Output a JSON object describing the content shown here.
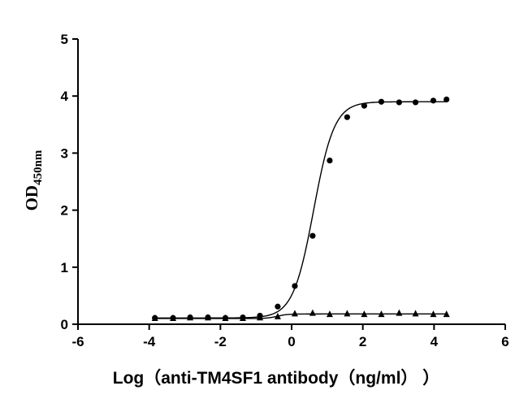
{
  "chart_data": {
    "type": "scatter",
    "title": "",
    "xlabel": "Log（anti-TM4SF1 antibody（ng/ml） ）",
    "ylabel_main": "OD",
    "ylabel_sub": "450nm",
    "xlim": [
      -6,
      6
    ],
    "ylim": [
      0,
      5
    ],
    "xticks": [
      -6,
      -4,
      -2,
      0,
      2,
      4,
      6
    ],
    "yticks": [
      0,
      1,
      2,
      3,
      4,
      5
    ],
    "grid": false,
    "legend": "none",
    "series": [
      {
        "marker": "circle",
        "color": "#000000",
        "x": [
          -3.84,
          -3.33,
          -2.85,
          -2.35,
          -1.86,
          -1.37,
          -0.89,
          -0.39,
          0.09,
          0.59,
          1.07,
          1.56,
          2.04,
          2.52,
          3.02,
          3.48,
          3.98,
          4.35
        ],
        "y": [
          0.11,
          0.11,
          0.12,
          0.12,
          0.11,
          0.12,
          0.15,
          0.31,
          0.67,
          1.55,
          2.87,
          3.63,
          3.83,
          3.9,
          3.89,
          3.89,
          3.92,
          3.94
        ],
        "fit": {
          "bottom": 0.11,
          "top": 3.9,
          "logEC50": 0.62,
          "hill": 1.5
        }
      },
      {
        "marker": "triangle",
        "color": "#000000",
        "x": [
          -3.84,
          -3.33,
          -2.85,
          -2.35,
          -1.86,
          -1.37,
          -0.89,
          -0.39,
          0.09,
          0.59,
          1.07,
          1.56,
          2.04,
          2.52,
          3.02,
          3.48,
          3.98,
          4.35
        ],
        "y": [
          0.1,
          0.1,
          0.11,
          0.11,
          0.1,
          0.1,
          0.11,
          0.13,
          0.18,
          0.19,
          0.17,
          0.18,
          0.17,
          0.17,
          0.19,
          0.18,
          0.17,
          0.17
        ],
        "fit": {
          "bottom": 0.1,
          "top": 0.18,
          "logEC50": -0.4,
          "hill": 3.0
        }
      }
    ]
  }
}
